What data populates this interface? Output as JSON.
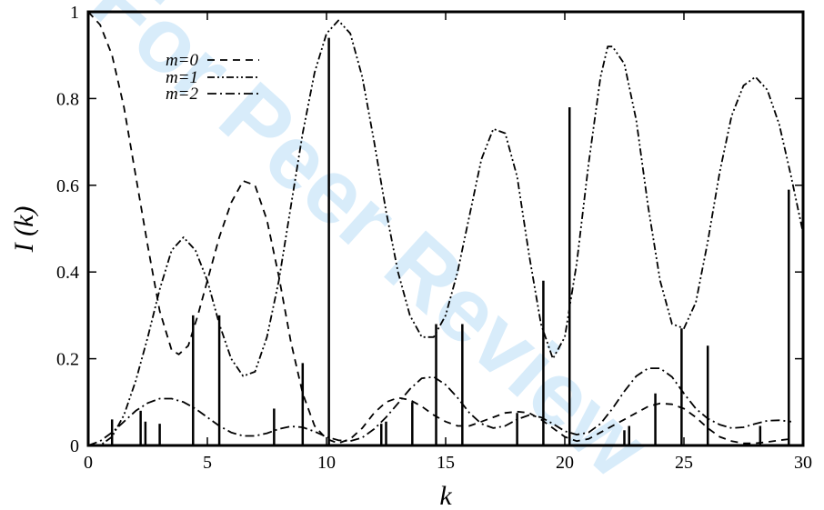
{
  "watermark": "For Peer Review",
  "chart_data": {
    "type": "line",
    "xlabel": "k",
    "ylabel": "I (k)",
    "xlim": [
      0,
      30
    ],
    "ylim": [
      0,
      1
    ],
    "x_ticks": [
      "0",
      "5",
      "10",
      "15",
      "20",
      "25",
      "30"
    ],
    "y_ticks": [
      "0",
      "0.2",
      "0.4",
      "0.6",
      "0.8",
      "1"
    ],
    "x_tick_values": [
      0,
      5,
      10,
      15,
      20,
      25,
      30
    ],
    "y_tick_values": [
      0,
      0.2,
      0.4,
      0.6,
      0.8,
      1
    ],
    "grid": false,
    "legend_position": "top-left",
    "series": [
      {
        "name": "m=0",
        "style": "dashed",
        "points": [
          [
            0,
            1.0
          ],
          [
            0.5,
            0.97
          ],
          [
            1,
            0.9
          ],
          [
            1.5,
            0.78
          ],
          [
            2,
            0.62
          ],
          [
            2.5,
            0.46
          ],
          [
            3,
            0.31
          ],
          [
            3.5,
            0.22
          ],
          [
            3.8,
            0.21
          ],
          [
            4.2,
            0.23
          ],
          [
            4.6,
            0.3
          ],
          [
            5,
            0.38
          ],
          [
            5.5,
            0.48
          ],
          [
            6,
            0.56
          ],
          [
            6.5,
            0.61
          ],
          [
            7,
            0.6
          ],
          [
            7.5,
            0.52
          ],
          [
            8,
            0.39
          ],
          [
            8.5,
            0.24
          ],
          [
            9,
            0.12
          ],
          [
            9.5,
            0.045
          ],
          [
            10,
            0.015
          ],
          [
            10.5,
            0.005
          ],
          [
            11,
            0.015
          ],
          [
            11.5,
            0.04
          ],
          [
            12,
            0.075
          ],
          [
            12.5,
            0.1
          ],
          [
            13,
            0.11
          ],
          [
            13.5,
            0.105
          ],
          [
            14,
            0.09
          ],
          [
            14.5,
            0.07
          ],
          [
            15,
            0.055
          ],
          [
            15.5,
            0.045
          ],
          [
            16,
            0.045
          ],
          [
            16.5,
            0.055
          ],
          [
            17,
            0.065
          ],
          [
            17.5,
            0.075
          ],
          [
            18,
            0.078
          ],
          [
            18.5,
            0.075
          ],
          [
            19,
            0.06
          ],
          [
            19.5,
            0.04
          ],
          [
            20,
            0.02
          ],
          [
            20.5,
            0.01
          ],
          [
            21,
            0.015
          ],
          [
            21.5,
            0.03
          ],
          [
            22,
            0.045
          ],
          [
            22.5,
            0.06
          ],
          [
            23,
            0.075
          ],
          [
            23.5,
            0.09
          ],
          [
            24,
            0.097
          ],
          [
            24.5,
            0.095
          ],
          [
            25,
            0.085
          ],
          [
            25.5,
            0.065
          ],
          [
            26,
            0.04
          ],
          [
            26.5,
            0.02
          ],
          [
            27,
            0.01
          ],
          [
            27.5,
            0.005
          ],
          [
            28,
            0.005
          ],
          [
            28.5,
            0.008
          ],
          [
            29,
            0.012
          ],
          [
            29.5,
            0.015
          ]
        ]
      },
      {
        "name": "m=1",
        "style": "dash-dot-dot",
        "points": [
          [
            0,
            0.0
          ],
          [
            0.5,
            0.0
          ],
          [
            1,
            0.02
          ],
          [
            1.5,
            0.07
          ],
          [
            2,
            0.15
          ],
          [
            2.5,
            0.25
          ],
          [
            3,
            0.36
          ],
          [
            3.5,
            0.45
          ],
          [
            4,
            0.48
          ],
          [
            4.5,
            0.45
          ],
          [
            5,
            0.38
          ],
          [
            5.5,
            0.28
          ],
          [
            6,
            0.2
          ],
          [
            6.5,
            0.16
          ],
          [
            7,
            0.17
          ],
          [
            7.5,
            0.25
          ],
          [
            8,
            0.38
          ],
          [
            8.5,
            0.55
          ],
          [
            9,
            0.72
          ],
          [
            9.5,
            0.86
          ],
          [
            10,
            0.95
          ],
          [
            10.5,
            0.98
          ],
          [
            11,
            0.95
          ],
          [
            11.5,
            0.85
          ],
          [
            12,
            0.7
          ],
          [
            12.5,
            0.54
          ],
          [
            13,
            0.4
          ],
          [
            13.5,
            0.3
          ],
          [
            14,
            0.25
          ],
          [
            14.5,
            0.25
          ],
          [
            15,
            0.3
          ],
          [
            15.5,
            0.4
          ],
          [
            16,
            0.53
          ],
          [
            16.5,
            0.66
          ],
          [
            17,
            0.73
          ],
          [
            17.5,
            0.72
          ],
          [
            18,
            0.62
          ],
          [
            18.5,
            0.44
          ],
          [
            19,
            0.28
          ],
          [
            19.5,
            0.2
          ],
          [
            20,
            0.25
          ],
          [
            20.5,
            0.42
          ],
          [
            21,
            0.65
          ],
          [
            21.5,
            0.85
          ],
          [
            21.8,
            0.92
          ],
          [
            22,
            0.92
          ],
          [
            22.5,
            0.88
          ],
          [
            23,
            0.75
          ],
          [
            23.5,
            0.55
          ],
          [
            24,
            0.38
          ],
          [
            24.5,
            0.28
          ],
          [
            25,
            0.27
          ],
          [
            25.5,
            0.33
          ],
          [
            26,
            0.47
          ],
          [
            26.5,
            0.63
          ],
          [
            27,
            0.76
          ],
          [
            27.5,
            0.83
          ],
          [
            28,
            0.85
          ],
          [
            28.5,
            0.82
          ],
          [
            29,
            0.74
          ],
          [
            29.5,
            0.62
          ],
          [
            30,
            0.49
          ]
        ]
      },
      {
        "name": "m=2",
        "style": "dash-dot",
        "points": [
          [
            0,
            0.0
          ],
          [
            0.5,
            0.01
          ],
          [
            1,
            0.03
          ],
          [
            1.5,
            0.055
          ],
          [
            2,
            0.08
          ],
          [
            2.5,
            0.098
          ],
          [
            3,
            0.108
          ],
          [
            3.5,
            0.108
          ],
          [
            4,
            0.1
          ],
          [
            4.5,
            0.085
          ],
          [
            5,
            0.065
          ],
          [
            5.5,
            0.045
          ],
          [
            6,
            0.03
          ],
          [
            6.5,
            0.022
          ],
          [
            7,
            0.022
          ],
          [
            7.5,
            0.028
          ],
          [
            8,
            0.038
          ],
          [
            8.5,
            0.044
          ],
          [
            9,
            0.042
          ],
          [
            9.5,
            0.032
          ],
          [
            10,
            0.02
          ],
          [
            10.5,
            0.012
          ],
          [
            11,
            0.01
          ],
          [
            11.5,
            0.018
          ],
          [
            12,
            0.038
          ],
          [
            12.5,
            0.065
          ],
          [
            13,
            0.097
          ],
          [
            13.5,
            0.13
          ],
          [
            14,
            0.155
          ],
          [
            14.5,
            0.158
          ],
          [
            15,
            0.14
          ],
          [
            15.5,
            0.11
          ],
          [
            16,
            0.075
          ],
          [
            16.5,
            0.05
          ],
          [
            17,
            0.04
          ],
          [
            17.5,
            0.045
          ],
          [
            18,
            0.06
          ],
          [
            18.5,
            0.07
          ],
          [
            19,
            0.065
          ],
          [
            19.5,
            0.05
          ],
          [
            20,
            0.033
          ],
          [
            20.5,
            0.025
          ],
          [
            21,
            0.03
          ],
          [
            21.5,
            0.05
          ],
          [
            22,
            0.085
          ],
          [
            22.5,
            0.125
          ],
          [
            23,
            0.16
          ],
          [
            23.5,
            0.178
          ],
          [
            24,
            0.178
          ],
          [
            24.5,
            0.158
          ],
          [
            25,
            0.12
          ],
          [
            25.5,
            0.085
          ],
          [
            26,
            0.062
          ],
          [
            26.5,
            0.048
          ],
          [
            27,
            0.04
          ],
          [
            27.5,
            0.042
          ],
          [
            28,
            0.05
          ],
          [
            28.5,
            0.057
          ],
          [
            29,
            0.058
          ],
          [
            29.5,
            0.055
          ]
        ]
      },
      {
        "name": "",
        "style": "impulses",
        "points": [
          [
            1.0,
            0.06
          ],
          [
            2.2,
            0.08
          ],
          [
            2.4,
            0.055
          ],
          [
            3.0,
            0.05
          ],
          [
            4.4,
            0.3
          ],
          [
            5.5,
            0.3
          ],
          [
            7.8,
            0.085
          ],
          [
            9.0,
            0.19
          ],
          [
            10.1,
            0.94
          ],
          [
            12.3,
            0.05
          ],
          [
            12.5,
            0.055
          ],
          [
            13.6,
            0.1
          ],
          [
            14.6,
            0.28
          ],
          [
            15.7,
            0.28
          ],
          [
            18.0,
            0.075
          ],
          [
            19.1,
            0.38
          ],
          [
            20.2,
            0.78
          ],
          [
            22.5,
            0.035
          ],
          [
            22.7,
            0.045
          ],
          [
            23.8,
            0.12
          ],
          [
            24.9,
            0.27
          ],
          [
            26.0,
            0.23
          ],
          [
            28.2,
            0.045
          ],
          [
            29.4,
            0.59
          ]
        ]
      }
    ]
  }
}
